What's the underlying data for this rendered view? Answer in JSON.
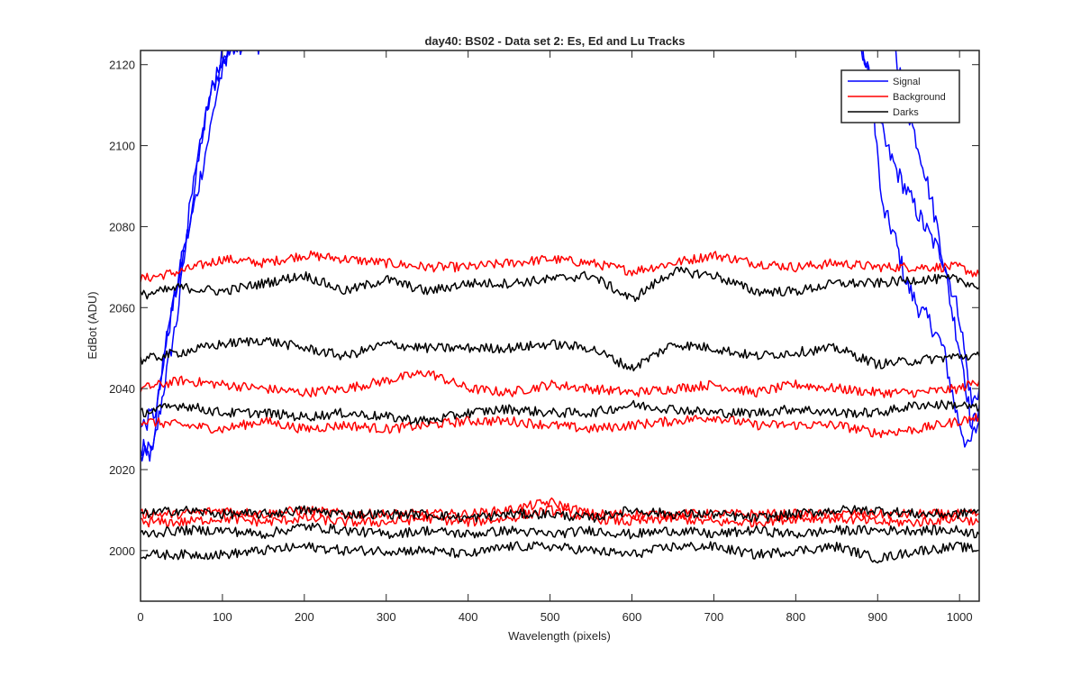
{
  "chart_data": {
    "type": "line",
    "title": "day40: BS02 - Data set 2: Es, Ed and Lu Tracks",
    "xlabel": "Wavelength (pixels)",
    "ylabel": "EdBot (ADU)",
    "xlim": [
      0,
      1024
    ],
    "ylim": [
      1987.5,
      2123.5
    ],
    "xticks": [
      0,
      100,
      200,
      300,
      400,
      500,
      600,
      700,
      800,
      900,
      1000
    ],
    "yticks": [
      2000,
      2020,
      2040,
      2060,
      2080,
      2100,
      2120
    ],
    "grid": false,
    "legend": {
      "location": "top-right",
      "entries": [
        "Signal",
        "Background",
        "Darks"
      ]
    },
    "colors": {
      "Signal": "#0000ff",
      "Background": "#ff0000",
      "Darks": "#000000"
    },
    "series": [
      {
        "name": "Signal",
        "group": "Signal",
        "color": "#0000ff",
        "x": [
          0,
          15,
          30,
          45,
          55,
          65,
          75,
          85,
          95,
          110,
          130,
          150,
          880,
          895,
          905,
          920,
          935,
          950,
          965,
          980,
          995,
          1010,
          1024
        ],
        "y": [
          2023,
          2024,
          2042,
          2058,
          2075,
          2088,
          2102,
          2112,
          2118,
          2125,
          2125,
          2125,
          2125,
          2110,
          2085,
          2078,
          2066,
          2060,
          2056,
          2050,
          2035,
          2025,
          2032
        ]
      },
      {
        "name": "Signal",
        "group": "Signal",
        "color": "#0000ff",
        "x": [
          0,
          15,
          30,
          45,
          60,
          75,
          85,
          95,
          110,
          880,
          895,
          910,
          925,
          945,
          960,
          980,
          1000,
          1015,
          1024
        ],
        "y": [
          2025,
          2027,
          2050,
          2066,
          2080,
          2094,
          2104,
          2115,
          2125,
          2125,
          2112,
          2100,
          2093,
          2085,
          2079,
          2072,
          2058,
          2036,
          2040
        ]
      },
      {
        "name": "Signal",
        "group": "Signal",
        "color": "#0000ff",
        "x": [
          0,
          20,
          35,
          50,
          65,
          80,
          95,
          120,
          920,
          935,
          955,
          975,
          990,
          1005,
          1015,
          1024
        ],
        "y": [
          2030,
          2035,
          2056,
          2072,
          2090,
          2108,
          2120,
          2125,
          2125,
          2110,
          2096,
          2078,
          2060,
          2045,
          2030,
          2036
        ]
      },
      {
        "name": "Background",
        "group": "Background",
        "color": "#ff0000",
        "x": [
          0,
          50,
          100,
          150,
          200,
          250,
          300,
          350,
          400,
          450,
          500,
          550,
          600,
          650,
          700,
          750,
          800,
          850,
          900,
          950,
          1000,
          1024
        ],
        "y": [
          2067,
          2069,
          2072,
          2071,
          2073,
          2072,
          2071,
          2070,
          2070,
          2071,
          2072,
          2071,
          2069,
          2071,
          2073,
          2071,
          2070,
          2071,
          2070,
          2070,
          2070,
          2068
        ]
      },
      {
        "name": "Background",
        "group": "Background",
        "color": "#ff0000",
        "x": [
          0,
          50,
          100,
          150,
          200,
          250,
          300,
          350,
          400,
          450,
          500,
          550,
          600,
          650,
          700,
          750,
          800,
          850,
          900,
          950,
          1000,
          1024
        ],
        "y": [
          2040,
          2042,
          2041,
          2040,
          2039,
          2040,
          2042,
          2044,
          2040,
          2039,
          2041,
          2040,
          2039,
          2040,
          2041,
          2039,
          2041,
          2040,
          2039,
          2039,
          2040,
          2042
        ]
      },
      {
        "name": "Background",
        "group": "Background",
        "color": "#ff0000",
        "x": [
          0,
          50,
          100,
          150,
          200,
          250,
          300,
          350,
          400,
          450,
          500,
          550,
          600,
          650,
          700,
          750,
          800,
          850,
          900,
          950,
          1000,
          1024
        ],
        "y": [
          2032,
          2031,
          2030,
          2032,
          2030,
          2031,
          2030,
          2031,
          2032,
          2032,
          2031,
          2030,
          2031,
          2032,
          2033,
          2031,
          2031,
          2031,
          2029,
          2030,
          2032,
          2033
        ]
      },
      {
        "name": "Background",
        "group": "Background",
        "color": "#ff0000",
        "x": [
          0,
          50,
          100,
          150,
          200,
          250,
          300,
          350,
          400,
          450,
          500,
          550,
          600,
          650,
          700,
          750,
          800,
          850,
          900,
          950,
          1000,
          1024
        ],
        "y": [
          2009,
          2009,
          2010,
          2009,
          2010,
          2009,
          2009,
          2009,
          2009,
          2010,
          2012,
          2009,
          2009,
          2009,
          2009,
          2009,
          2009,
          2009,
          2009,
          2009,
          2009,
          2009
        ]
      },
      {
        "name": "Background",
        "group": "Background",
        "color": "#ff0000",
        "x": [
          0,
          50,
          100,
          150,
          200,
          250,
          300,
          350,
          400,
          450,
          500,
          550,
          600,
          650,
          700,
          750,
          800,
          850,
          900,
          950,
          1000,
          1024
        ],
        "y": [
          2007,
          2007,
          2008,
          2007,
          2008,
          2007,
          2007,
          2008,
          2007,
          2008,
          2010,
          2008,
          2007,
          2008,
          2007,
          2007,
          2008,
          2008,
          2007,
          2007,
          2008,
          2007
        ]
      },
      {
        "name": "Darks",
        "group": "Darks",
        "color": "#000000",
        "x": [
          0,
          50,
          100,
          150,
          200,
          250,
          300,
          350,
          400,
          450,
          500,
          550,
          600,
          650,
          700,
          750,
          800,
          850,
          900,
          950,
          1000,
          1024
        ],
        "y": [
          2063,
          2065,
          2064,
          2066,
          2068,
          2064,
          2067,
          2064,
          2066,
          2066,
          2067,
          2068,
          2062,
          2069,
          2068,
          2064,
          2064,
          2066,
          2066,
          2067,
          2067,
          2065
        ]
      },
      {
        "name": "Darks",
        "group": "Darks",
        "color": "#000000",
        "x": [
          0,
          50,
          100,
          150,
          200,
          250,
          300,
          350,
          400,
          450,
          500,
          550,
          600,
          650,
          700,
          750,
          800,
          850,
          900,
          950,
          1000,
          1024
        ],
        "y": [
          2047,
          2049,
          2051,
          2052,
          2050,
          2048,
          2051,
          2050,
          2050,
          2050,
          2051,
          2050,
          2045,
          2051,
          2050,
          2048,
          2049,
          2050,
          2046,
          2047,
          2048,
          2048
        ]
      },
      {
        "name": "Darks",
        "group": "Darks",
        "color": "#000000",
        "x": [
          0,
          50,
          100,
          150,
          200,
          250,
          300,
          350,
          400,
          450,
          500,
          550,
          600,
          650,
          700,
          750,
          800,
          850,
          900,
          950,
          1000,
          1024
        ],
        "y": [
          2034,
          2036,
          2034,
          2034,
          2033,
          2034,
          2033,
          2032,
          2034,
          2035,
          2034,
          2034,
          2036,
          2035,
          2034,
          2034,
          2035,
          2034,
          2034,
          2036,
          2036,
          2035
        ]
      },
      {
        "name": "Darks",
        "group": "Darks",
        "color": "#000000",
        "x": [
          0,
          50,
          100,
          150,
          200,
          250,
          300,
          350,
          400,
          450,
          500,
          550,
          600,
          650,
          700,
          750,
          800,
          850,
          900,
          950,
          1000,
          1024
        ],
        "y": [
          2009,
          2010,
          2009,
          2009,
          2010,
          2009,
          2009,
          2009,
          2008,
          2009,
          2009,
          2008,
          2010,
          2009,
          2009,
          2008,
          2009,
          2010,
          2010,
          2009,
          2009,
          2010
        ]
      },
      {
        "name": "Darks",
        "group": "Darks",
        "color": "#000000",
        "x": [
          0,
          50,
          100,
          150,
          200,
          250,
          300,
          350,
          400,
          450,
          500,
          550,
          600,
          650,
          700,
          750,
          800,
          850,
          900,
          950,
          1000,
          1024
        ],
        "y": [
          2004,
          2005,
          2005,
          2004,
          2006,
          2005,
          2004,
          2005,
          2004,
          2005,
          2004,
          2005,
          2004,
          2005,
          2004,
          2005,
          2004,
          2005,
          2005,
          2005,
          2005,
          2004
        ]
      },
      {
        "name": "Darks",
        "group": "Darks",
        "color": "#000000",
        "x": [
          0,
          50,
          100,
          150,
          200,
          250,
          300,
          350,
          400,
          450,
          500,
          550,
          600,
          650,
          700,
          750,
          800,
          850,
          900,
          950,
          1000,
          1024
        ],
        "y": [
          1999,
          1999,
          1999,
          2000,
          2001,
          2000,
          2000,
          2000,
          1999,
          2001,
          2001,
          2000,
          1999,
          2001,
          2001,
          1999,
          2000,
          2001,
          1998,
          2000,
          2001,
          2000
        ]
      }
    ]
  }
}
